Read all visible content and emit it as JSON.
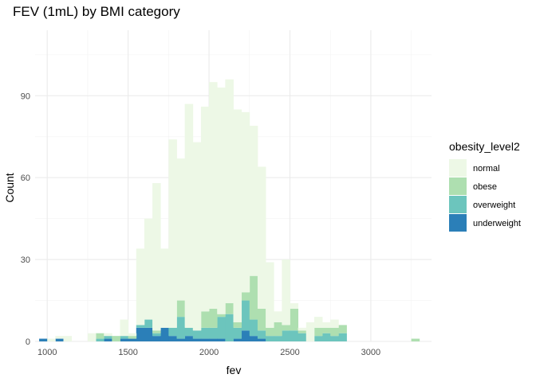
{
  "chart_data": {
    "type": "bar",
    "subtype": "stacked-histogram",
    "title": "FEV (1mL) by BMI category",
    "xlabel": "fev",
    "ylabel": "Count",
    "xlim": [
      925,
      3375
    ],
    "ylim": [
      0,
      114
    ],
    "x_ticks": [
      1000,
      1500,
      2000,
      2500,
      3000
    ],
    "y_ticks": [
      0,
      30,
      60,
      90
    ],
    "bin_width": 50,
    "bins_start": [
      950,
      1000,
      1050,
      1100,
      1150,
      1200,
      1250,
      1300,
      1350,
      1400,
      1450,
      1500,
      1550,
      1600,
      1650,
      1700,
      1750,
      1800,
      1850,
      1900,
      1950,
      2000,
      2050,
      2100,
      2150,
      2200,
      2250,
      2300,
      2350,
      2400,
      2450,
      2500,
      2550,
      2600,
      2650,
      2700,
      2750,
      2800,
      2850,
      2900,
      2950,
      3000,
      3050,
      3100,
      3150,
      3200,
      3250,
      3300
    ],
    "legend_title": "obesity_level2",
    "legend_position": "right",
    "grid": true,
    "series": [
      {
        "name": "underweight",
        "color": "#2b7fb8",
        "values": [
          1,
          0,
          1,
          0,
          0,
          0,
          0,
          0,
          1,
          0,
          1,
          1,
          5,
          5,
          2,
          5,
          2,
          1,
          2,
          1,
          1,
          1,
          1,
          0,
          1,
          4,
          2,
          1,
          0,
          0,
          0,
          0,
          0,
          0,
          0,
          0,
          0,
          0,
          0,
          0,
          0,
          0,
          0,
          0,
          0,
          0,
          0,
          0
        ]
      },
      {
        "name": "overweight",
        "color": "#6cc5bd",
        "values": [
          0,
          0,
          0,
          0,
          0,
          0,
          0,
          1,
          1,
          0,
          1,
          0,
          1,
          3,
          1,
          0,
          3,
          8,
          3,
          3,
          4,
          4,
          8,
          10,
          4,
          11,
          6,
          3,
          2,
          2,
          4,
          4,
          3,
          0,
          2,
          3,
          2,
          3,
          0,
          0,
          0,
          0,
          0,
          0,
          0,
          0,
          0,
          0
        ]
      },
      {
        "name": "obese",
        "color": "#aedfb0",
        "values": [
          0,
          0,
          0,
          0,
          0,
          0,
          0,
          2,
          0,
          2,
          0,
          1,
          0,
          0,
          1,
          0,
          0,
          6,
          0,
          0,
          6,
          7,
          1,
          4,
          2,
          3,
          16,
          8,
          3,
          5,
          2,
          8,
          1,
          0,
          3,
          2,
          3,
          3,
          0,
          0,
          0,
          0,
          0,
          0,
          0,
          0,
          1,
          0
        ]
      },
      {
        "name": "normal",
        "color": "#edf8e6",
        "values": [
          0,
          1,
          1,
          2,
          0,
          0,
          3,
          0,
          1,
          0,
          6,
          1,
          28,
          37,
          54,
          29,
          69,
          52,
          82,
          69,
          75,
          83,
          83,
          82,
          78,
          66,
          55,
          52,
          24,
          4,
          24,
          2,
          1,
          7,
          4,
          2,
          3,
          0,
          0,
          0,
          0,
          0,
          0,
          0,
          0,
          0,
          0,
          0
        ]
      }
    ]
  }
}
